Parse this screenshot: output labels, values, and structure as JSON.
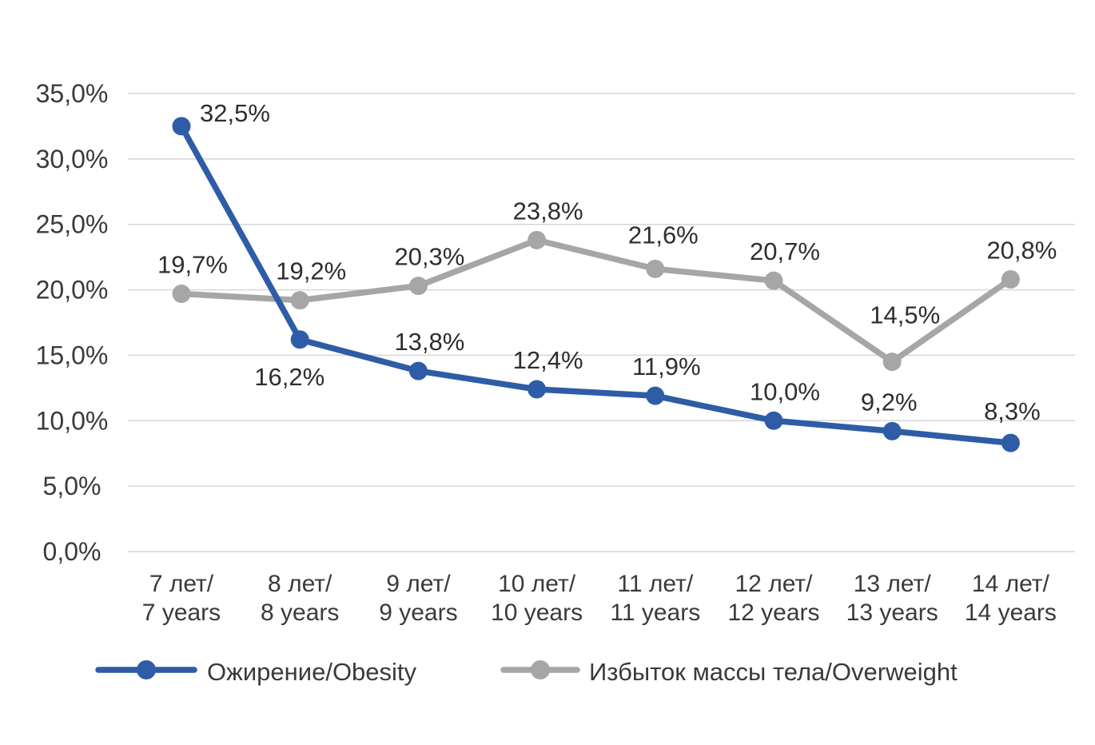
{
  "chart_data": {
    "type": "line",
    "title": "",
    "xlabel": "",
    "ylabel": "",
    "categories": [
      "7 лет/\n7 years",
      "8 лет/\n8 years",
      "9 лет/\n9 years",
      "10 лет/\n10 years",
      "11 лет/\n11 years",
      "12 лет/\n12 years",
      "13 лет/\n13 years",
      "14 лет/\n14 years"
    ],
    "series": [
      {
        "name": "Ожирение/Obesity",
        "color": "#2E5CA6",
        "values": [
          32.5,
          16.2,
          13.8,
          12.4,
          11.9,
          10.0,
          9.2,
          8.3
        ],
        "point_labels": [
          "32,5%",
          "16,2%",
          "13,8%",
          "12,4%",
          "11,9%",
          "10,0%",
          "9,2%",
          "8,3%"
        ]
      },
      {
        "name": "Избыток массы тела/Overweight",
        "color": "#A6A6A6",
        "values": [
          19.7,
          19.2,
          20.3,
          23.8,
          21.6,
          20.7,
          14.5,
          20.8
        ],
        "point_labels": [
          "19,7%",
          "19,2%",
          "20,3%",
          "23,8%",
          "21,6%",
          "20,7%",
          "14,5%",
          "20,8%"
        ]
      }
    ],
    "ylim": [
      0,
      35
    ],
    "ytick_step": 5,
    "ytick_labels": [
      "0,0%",
      "5,0%",
      "10,0%",
      "15,0%",
      "20,0%",
      "25,0%",
      "30,0%",
      "35,0%"
    ],
    "grid": true,
    "legend_position": "bottom",
    "decimal_separator": ",",
    "colors": {
      "gridline": "#D6D6D6",
      "axis_text": "#3A3A3A",
      "data_label_text": "#2E2E2E"
    },
    "label_offsets": {
      "default": [
        14,
        -26
      ],
      "series0": {
        "0": [
          67,
          -6
        ],
        "1": [
          -13,
          57
        ],
        "6": [
          -4,
          -26
        ],
        "7": [
          2,
          -29
        ]
      },
      "series1": {
        "4": [
          10,
          -32
        ],
        "6": [
          16,
          -48
        ]
      }
    }
  }
}
